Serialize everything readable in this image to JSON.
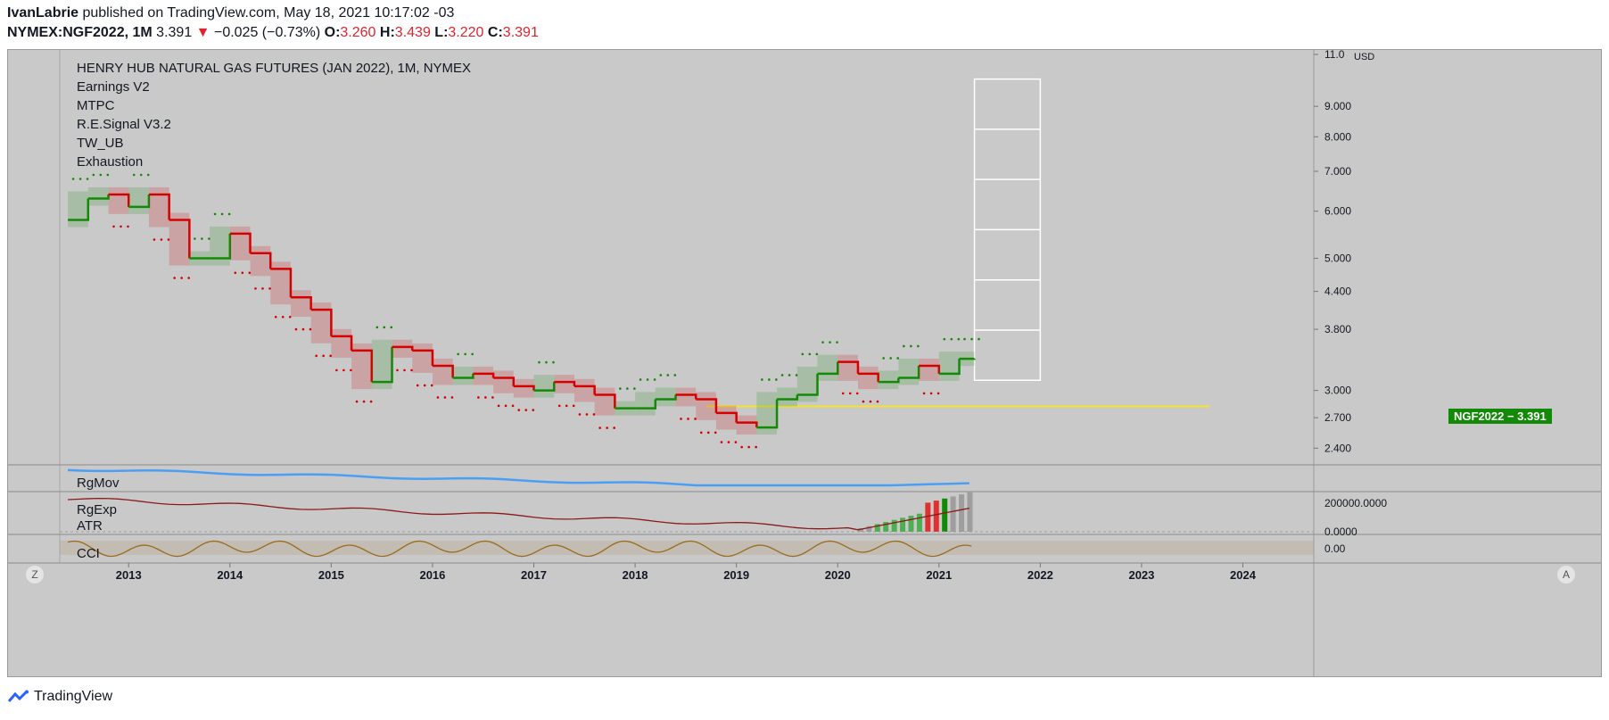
{
  "header": {
    "author": "IvanLabrie",
    "published": "published on TradingView.com, May 18, 2021 10:17:02 -03",
    "symbol": "NYMEX:NGF2022, 1M",
    "last": "3.391",
    "change_arrow": "▼",
    "change": "−0.025 (−0.73%)",
    "open_label": "O:",
    "open": "3.260",
    "high_label": "H:",
    "high": "3.439",
    "low_label": "L:",
    "low": "3.220",
    "close_label": "C:",
    "close": "3.391"
  },
  "legend": {
    "title": "HENRY HUB NATURAL GAS FUTURES (JAN 2022), 1M, NYMEX",
    "indicators": [
      "Earnings V2",
      "MTPC",
      "R.E.Signal V3.2",
      "TW_UB",
      "Exhaustion"
    ]
  },
  "panes": {
    "rgmov": "RgMov",
    "rgexp": "RgExp",
    "atr": "ATR",
    "cci": "CCI"
  },
  "axis_right": {
    "currency": "USD",
    "price_label": "NGF2022 − 3.391",
    "rgexp_label_top": "200000.0000",
    "rgexp_label_bottom": "0.0000",
    "cci_label": "0.00"
  },
  "buttons": {
    "z": "Z",
    "a": "A"
  },
  "footer": {
    "brand": "TradingView"
  },
  "colors": {
    "pane_bg": "#c9c9c9",
    "up": "#138a07",
    "down": "#d50000",
    "neutral": "#3a3a3a",
    "yellow_line": "#f5e22a",
    "rgmov_line": "#4a9ff5",
    "rgexp_line": "#8b1a1a",
    "cci_line": "#9a6a1f"
  },
  "chart_data": {
    "type": "line",
    "title": "HENRY HUB NATURAL GAS FUTURES (JAN 2022), 1M, NYMEX",
    "xlabel": "",
    "ylabel": "USD",
    "y_scale": "log",
    "ylim": [
      2.25,
      11.0
    ],
    "y_ticks": [
      "2.400",
      "2.700",
      "3.000",
      "3.800",
      "4.400",
      "5.000",
      "6.000",
      "7.000",
      "8.000",
      "9.000",
      "11.0"
    ],
    "x_ticks": [
      "2013",
      "2014",
      "2015",
      "2016",
      "2017",
      "2018",
      "2019",
      "2020",
      "2021",
      "2022",
      "2023",
      "2024"
    ],
    "xlim": [
      2012.32,
      2024.7
    ],
    "series": [
      {
        "x": [
          2012.4,
          2012.6,
          2012.8,
          2013.0,
          2013.2,
          2013.4,
          2013.6,
          2013.8,
          2014.0,
          2014.2,
          2014.4,
          2014.6,
          2014.8,
          2015.0,
          2015.2,
          2015.4,
          2015.6,
          2015.8,
          2016.0,
          2016.2,
          2016.4,
          2016.6,
          2016.8,
          2017.0,
          2017.2,
          2017.4,
          2017.6,
          2017.8,
          2018.0,
          2018.2,
          2018.4,
          2018.6,
          2018.8,
          2019.0,
          2019.2,
          2019.4,
          2019.6,
          2019.8,
          2020.0,
          2020.2,
          2020.4,
          2020.6,
          2020.8,
          2021.0,
          2021.2,
          2021.35
        ],
        "values": [
          5.8,
          6.3,
          6.4,
          6.1,
          6.4,
          5.8,
          5.0,
          5.0,
          5.5,
          5.1,
          4.8,
          4.3,
          4.1,
          3.7,
          3.5,
          3.1,
          3.55,
          3.5,
          3.3,
          3.15,
          3.2,
          3.15,
          3.05,
          3.0,
          3.1,
          3.05,
          2.95,
          2.8,
          2.8,
          2.9,
          2.95,
          2.9,
          2.75,
          2.65,
          2.6,
          2.9,
          2.95,
          3.2,
          3.35,
          3.2,
          3.1,
          3.15,
          3.3,
          3.2,
          3.39,
          3.391
        ]
      }
    ],
    "horizontal_line": 2.82,
    "box": {
      "x0": 2021.35,
      "x1": 2022.0,
      "y0": 3.12,
      "y1": 10.0
    }
  }
}
